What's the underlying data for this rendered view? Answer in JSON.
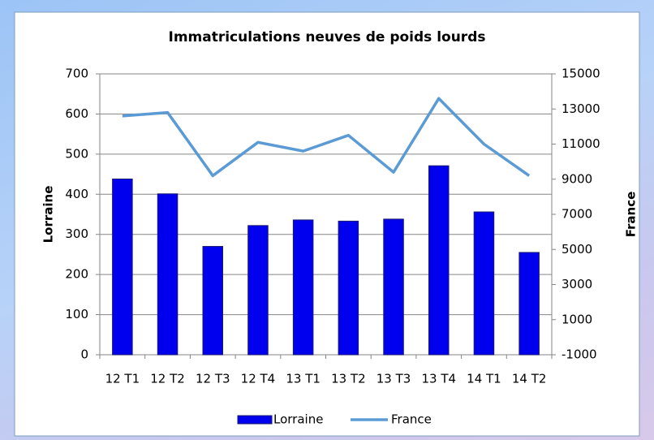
{
  "chart_data": {
    "type": "bar",
    "title": "Immatriculations neuves de poids lourds",
    "y_label": "Lorraine",
    "y2_label": "France",
    "categories": [
      "12 T1",
      "12 T2",
      "12 T3",
      "12 T4",
      "13 T1",
      "13 T2",
      "13 T3",
      "13 T4",
      "14 T1",
      "14 T2"
    ],
    "series": [
      {
        "name": "Lorraine",
        "type": "bar",
        "color": "#0000ee",
        "values": [
          438,
          401,
          270,
          322,
          336,
          333,
          338,
          471,
          356,
          255
        ]
      },
      {
        "name": "France",
        "type": "line",
        "axis": "y2",
        "color": "#5b9bd5",
        "values": [
          12600,
          12800,
          9200,
          11100,
          10600,
          11500,
          9400,
          13600,
          11000,
          9200
        ]
      }
    ],
    "ylim": [
      0,
      700
    ],
    "yticks": [
      0,
      100,
      200,
      300,
      400,
      500,
      600,
      700
    ],
    "y2lim": [
      -1000,
      15000
    ],
    "y2ticks": [
      -1000,
      1000,
      3000,
      5000,
      7000,
      9000,
      11000,
      13000,
      15000
    ],
    "grid": true,
    "legend": "bottom"
  }
}
